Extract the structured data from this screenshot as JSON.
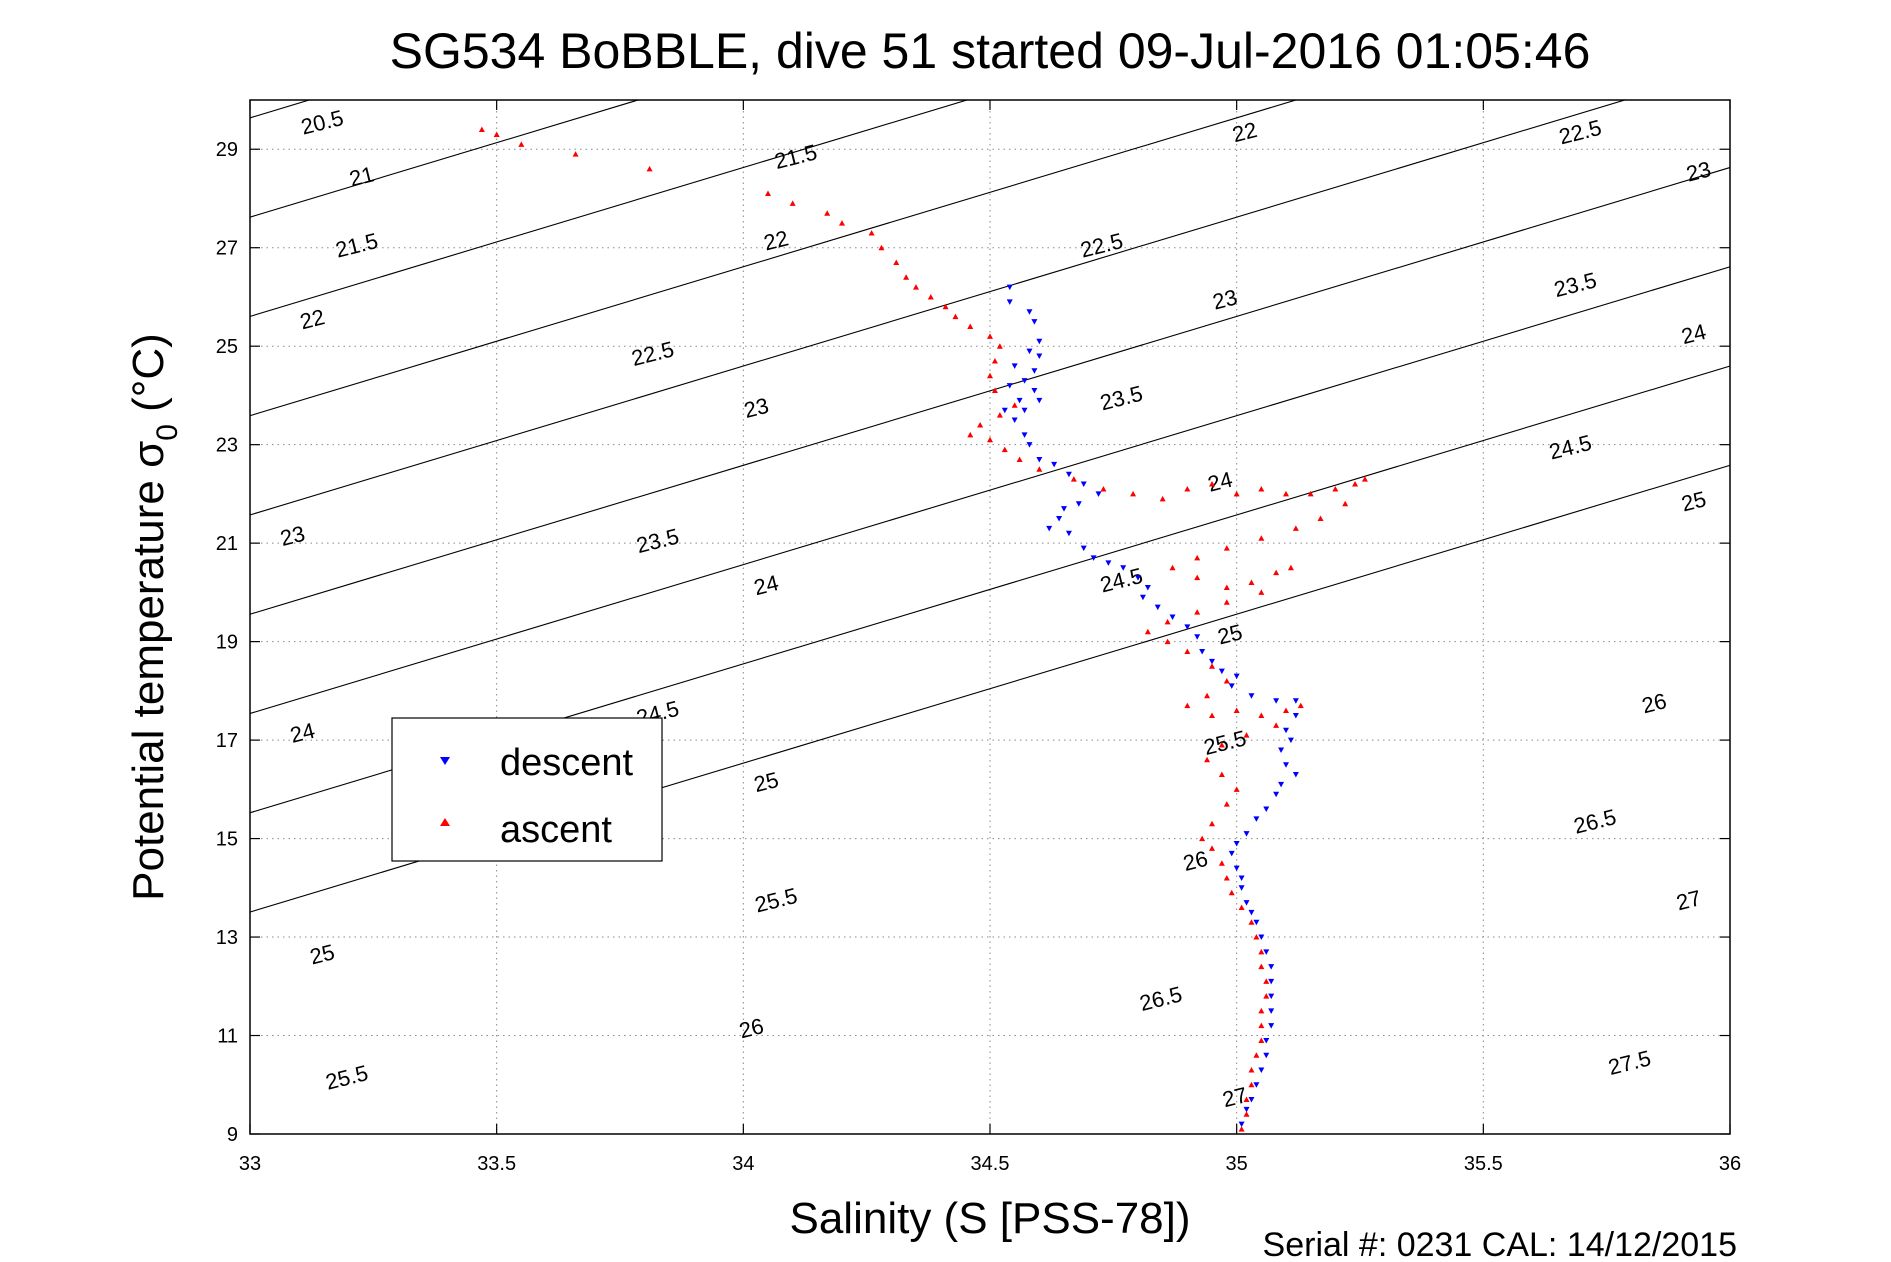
{
  "chart_data": {
    "type": "scatter",
    "title": "SG534 BoBBLE, dive 51 started 09-Jul-2016 01:05:46",
    "xlabel": "Salinity (S [PSS-78])",
    "ylabel": "Potential temperature σ₀ (°C)",
    "ylabel_main": "Potential temperature σ",
    "ylabel_sub": "0",
    "ylabel_unit": " (°C)",
    "xlim": [
      33,
      36
    ],
    "ylim": [
      9,
      30
    ],
    "x_ticks": [
      33,
      33.5,
      34,
      34.5,
      35,
      35.5,
      36
    ],
    "x_tick_labels": [
      "33",
      "33.5",
      "34",
      "34.5",
      "35",
      "35.5",
      "36"
    ],
    "y_ticks": [
      9,
      11,
      13,
      15,
      17,
      19,
      21,
      23,
      25,
      27,
      29
    ],
    "y_tick_labels": [
      "9",
      "11",
      "13",
      "15",
      "17",
      "19",
      "21",
      "23",
      "25",
      "27",
      "29"
    ],
    "grid": true,
    "legend_position": "left-middle",
    "footer": "Serial #: 0231  CAL: 14/12/2015",
    "density_contours": [
      20.5,
      21,
      21.5,
      22,
      22.5,
      23,
      23.5,
      24,
      24.5,
      25,
      25.5,
      26,
      26.5,
      27,
      27.5
    ],
    "contour_labels": [
      {
        "text": "20.5",
        "s": 33.15,
        "t": 29.4
      },
      {
        "text": "21",
        "s": 33.23,
        "t": 28.3
      },
      {
        "text": "21.5",
        "s": 33.22,
        "t": 26.9
      },
      {
        "text": "22",
        "s": 33.13,
        "t": 25.4
      },
      {
        "text": "23",
        "s": 33.09,
        "t": 21.0
      },
      {
        "text": "24",
        "s": 33.11,
        "t": 17.0
      },
      {
        "text": "25",
        "s": 33.15,
        "t": 12.5
      },
      {
        "text": "25.5",
        "s": 33.2,
        "t": 10.0
      },
      {
        "text": "21.5",
        "s": 34.11,
        "t": 28.7
      },
      {
        "text": "22",
        "s": 34.07,
        "t": 27.0
      },
      {
        "text": "22.5",
        "s": 33.82,
        "t": 24.7
      },
      {
        "text": "23",
        "s": 34.03,
        "t": 23.6
      },
      {
        "text": "23.5",
        "s": 33.83,
        "t": 20.9
      },
      {
        "text": "24",
        "s": 34.05,
        "t": 20.0
      },
      {
        "text": "24.5",
        "s": 33.83,
        "t": 17.4
      },
      {
        "text": "25",
        "s": 34.05,
        "t": 16.0
      },
      {
        "text": "25.5",
        "s": 34.07,
        "t": 13.6
      },
      {
        "text": "26",
        "s": 34.02,
        "t": 11.0
      },
      {
        "text": "22.5",
        "s": 34.73,
        "t": 26.9
      },
      {
        "text": "23.5",
        "s": 34.77,
        "t": 23.8
      },
      {
        "text": "24.5",
        "s": 34.77,
        "t": 20.1
      },
      {
        "text": "26.5",
        "s": 34.85,
        "t": 11.6
      },
      {
        "text": "22",
        "s": 35.02,
        "t": 29.2
      },
      {
        "text": "23",
        "s": 34.98,
        "t": 25.8
      },
      {
        "text": "24",
        "s": 34.97,
        "t": 22.1
      },
      {
        "text": "25",
        "s": 34.99,
        "t": 19.0
      },
      {
        "text": "25.5",
        "s": 34.98,
        "t": 16.8
      },
      {
        "text": "26",
        "s": 34.92,
        "t": 14.4
      },
      {
        "text": "27",
        "s": 35.0,
        "t": 9.6
      },
      {
        "text": "22.5",
        "s": 35.7,
        "t": 29.2
      },
      {
        "text": "23.5",
        "s": 35.69,
        "t": 26.1
      },
      {
        "text": "24.5",
        "s": 35.68,
        "t": 22.8
      },
      {
        "text": "26",
        "s": 35.85,
        "t": 17.6
      },
      {
        "text": "26.5",
        "s": 35.73,
        "t": 15.2
      },
      {
        "text": "27.5",
        "s": 35.8,
        "t": 10.3
      },
      {
        "text": "23",
        "s": 35.94,
        "t": 28.4
      },
      {
        "text": "24",
        "s": 35.93,
        "t": 25.1
      },
      {
        "text": "25",
        "s": 35.93,
        "t": 21.7
      },
      {
        "text": "27",
        "s": 35.92,
        "t": 13.6
      }
    ],
    "series": [
      {
        "name": "descent",
        "color": "#0000ff",
        "marker": "triangle-down",
        "points": [
          [
            34.54,
            26.2
          ],
          [
            34.54,
            25.9
          ],
          [
            34.58,
            25.7
          ],
          [
            34.59,
            25.5
          ],
          [
            34.6,
            25.1
          ],
          [
            34.58,
            24.9
          ],
          [
            34.6,
            24.8
          ],
          [
            34.55,
            24.6
          ],
          [
            34.59,
            24.5
          ],
          [
            34.57,
            24.3
          ],
          [
            34.54,
            24.2
          ],
          [
            34.59,
            24.1
          ],
          [
            34.56,
            23.9
          ],
          [
            34.6,
            23.9
          ],
          [
            34.53,
            23.7
          ],
          [
            34.57,
            23.7
          ],
          [
            34.55,
            23.5
          ],
          [
            34.57,
            23.2
          ],
          [
            34.58,
            23.0
          ],
          [
            34.6,
            22.7
          ],
          [
            34.63,
            22.6
          ],
          [
            34.66,
            22.4
          ],
          [
            34.69,
            22.2
          ],
          [
            34.72,
            22.0
          ],
          [
            34.68,
            21.8
          ],
          [
            34.65,
            21.7
          ],
          [
            34.64,
            21.5
          ],
          [
            34.62,
            21.3
          ],
          [
            34.66,
            21.2
          ],
          [
            34.69,
            20.9
          ],
          [
            34.71,
            20.7
          ],
          [
            34.74,
            20.6
          ],
          [
            34.77,
            20.5
          ],
          [
            34.8,
            20.3
          ],
          [
            34.82,
            20.1
          ],
          [
            34.81,
            19.9
          ],
          [
            34.84,
            19.7
          ],
          [
            34.87,
            19.5
          ],
          [
            34.9,
            19.3
          ],
          [
            34.92,
            19.1
          ],
          [
            34.93,
            18.8
          ],
          [
            34.95,
            18.6
          ],
          [
            34.97,
            18.4
          ],
          [
            35.0,
            18.3
          ],
          [
            34.99,
            18.1
          ],
          [
            35.03,
            17.9
          ],
          [
            35.08,
            17.8
          ],
          [
            35.12,
            17.8
          ],
          [
            35.12,
            17.5
          ],
          [
            35.1,
            17.2
          ],
          [
            35.11,
            17.0
          ],
          [
            35.09,
            16.8
          ],
          [
            35.1,
            16.5
          ],
          [
            35.12,
            16.3
          ],
          [
            35.09,
            16.1
          ],
          [
            35.08,
            15.9
          ],
          [
            35.06,
            15.6
          ],
          [
            35.04,
            15.4
          ],
          [
            35.02,
            15.1
          ],
          [
            35.0,
            14.9
          ],
          [
            34.99,
            14.7
          ],
          [
            35.0,
            14.4
          ],
          [
            35.01,
            14.2
          ],
          [
            35.01,
            14.0
          ],
          [
            35.02,
            13.7
          ],
          [
            35.03,
            13.5
          ],
          [
            35.04,
            13.3
          ],
          [
            35.05,
            13.0
          ],
          [
            35.06,
            12.7
          ],
          [
            35.07,
            12.4
          ],
          [
            35.07,
            12.1
          ],
          [
            35.07,
            11.8
          ],
          [
            35.07,
            11.5
          ],
          [
            35.07,
            11.2
          ],
          [
            35.06,
            10.9
          ],
          [
            35.06,
            10.6
          ],
          [
            35.05,
            10.3
          ],
          [
            35.04,
            10.0
          ],
          [
            35.03,
            9.7
          ],
          [
            35.02,
            9.5
          ],
          [
            35.01,
            9.2
          ]
        ]
      },
      {
        "name": "ascent",
        "color": "#ff0000",
        "marker": "triangle-up",
        "points": [
          [
            33.47,
            29.4
          ],
          [
            33.5,
            29.3
          ],
          [
            33.55,
            29.1
          ],
          [
            33.66,
            28.9
          ],
          [
            33.81,
            28.6
          ],
          [
            34.05,
            28.1
          ],
          [
            34.1,
            27.9
          ],
          [
            34.17,
            27.7
          ],
          [
            34.2,
            27.5
          ],
          [
            34.26,
            27.3
          ],
          [
            34.28,
            27.0
          ],
          [
            34.31,
            26.7
          ],
          [
            34.33,
            26.4
          ],
          [
            34.35,
            26.2
          ],
          [
            34.38,
            26.0
          ],
          [
            34.41,
            25.8
          ],
          [
            34.43,
            25.6
          ],
          [
            34.46,
            25.4
          ],
          [
            34.5,
            25.2
          ],
          [
            34.52,
            25.0
          ],
          [
            34.51,
            24.7
          ],
          [
            34.5,
            24.4
          ],
          [
            34.51,
            24.1
          ],
          [
            34.55,
            23.8
          ],
          [
            34.52,
            23.6
          ],
          [
            34.48,
            23.4
          ],
          [
            34.46,
            23.2
          ],
          [
            34.5,
            23.1
          ],
          [
            34.53,
            22.9
          ],
          [
            34.56,
            22.7
          ],
          [
            34.6,
            22.5
          ],
          [
            34.67,
            22.3
          ],
          [
            34.73,
            22.1
          ],
          [
            34.79,
            22.0
          ],
          [
            34.85,
            21.9
          ],
          [
            34.9,
            22.1
          ],
          [
            34.95,
            22.2
          ],
          [
            35.0,
            22.0
          ],
          [
            35.05,
            22.1
          ],
          [
            35.1,
            22.0
          ],
          [
            35.15,
            22.0
          ],
          [
            35.2,
            22.1
          ],
          [
            35.24,
            22.2
          ],
          [
            35.26,
            22.3
          ],
          [
            35.22,
            21.8
          ],
          [
            35.17,
            21.5
          ],
          [
            35.12,
            21.3
          ],
          [
            35.05,
            21.1
          ],
          [
            34.98,
            20.9
          ],
          [
            34.92,
            20.7
          ],
          [
            34.87,
            20.5
          ],
          [
            34.92,
            20.3
          ],
          [
            34.98,
            20.1
          ],
          [
            35.03,
            20.2
          ],
          [
            35.08,
            20.4
          ],
          [
            35.11,
            20.5
          ],
          [
            35.05,
            20.0
          ],
          [
            34.98,
            19.8
          ],
          [
            34.92,
            19.6
          ],
          [
            34.86,
            19.4
          ],
          [
            34.82,
            19.2
          ],
          [
            34.86,
            19.0
          ],
          [
            34.9,
            18.8
          ],
          [
            34.95,
            18.5
          ],
          [
            34.98,
            18.2
          ],
          [
            34.94,
            17.9
          ],
          [
            34.9,
            17.7
          ],
          [
            34.95,
            17.5
          ],
          [
            35.0,
            17.6
          ],
          [
            35.05,
            17.5
          ],
          [
            35.1,
            17.6
          ],
          [
            35.13,
            17.7
          ],
          [
            35.08,
            17.3
          ],
          [
            35.02,
            17.1
          ],
          [
            34.97,
            16.9
          ],
          [
            34.94,
            16.6
          ],
          [
            34.97,
            16.3
          ],
          [
            35.0,
            16.0
          ],
          [
            34.98,
            15.7
          ],
          [
            34.95,
            15.3
          ],
          [
            34.93,
            15.0
          ],
          [
            34.95,
            14.8
          ],
          [
            34.97,
            14.5
          ],
          [
            34.98,
            14.2
          ],
          [
            34.99,
            13.9
          ],
          [
            35.01,
            13.6
          ],
          [
            35.03,
            13.3
          ],
          [
            35.04,
            13.0
          ],
          [
            35.05,
            12.7
          ],
          [
            35.05,
            12.4
          ],
          [
            35.06,
            12.1
          ],
          [
            35.06,
            11.8
          ],
          [
            35.05,
            11.5
          ],
          [
            35.05,
            11.2
          ],
          [
            35.05,
            10.9
          ],
          [
            35.04,
            10.6
          ],
          [
            35.03,
            10.3
          ],
          [
            35.03,
            10.0
          ],
          [
            35.02,
            9.7
          ],
          [
            35.02,
            9.4
          ],
          [
            35.01,
            9.1
          ]
        ]
      }
    ]
  }
}
